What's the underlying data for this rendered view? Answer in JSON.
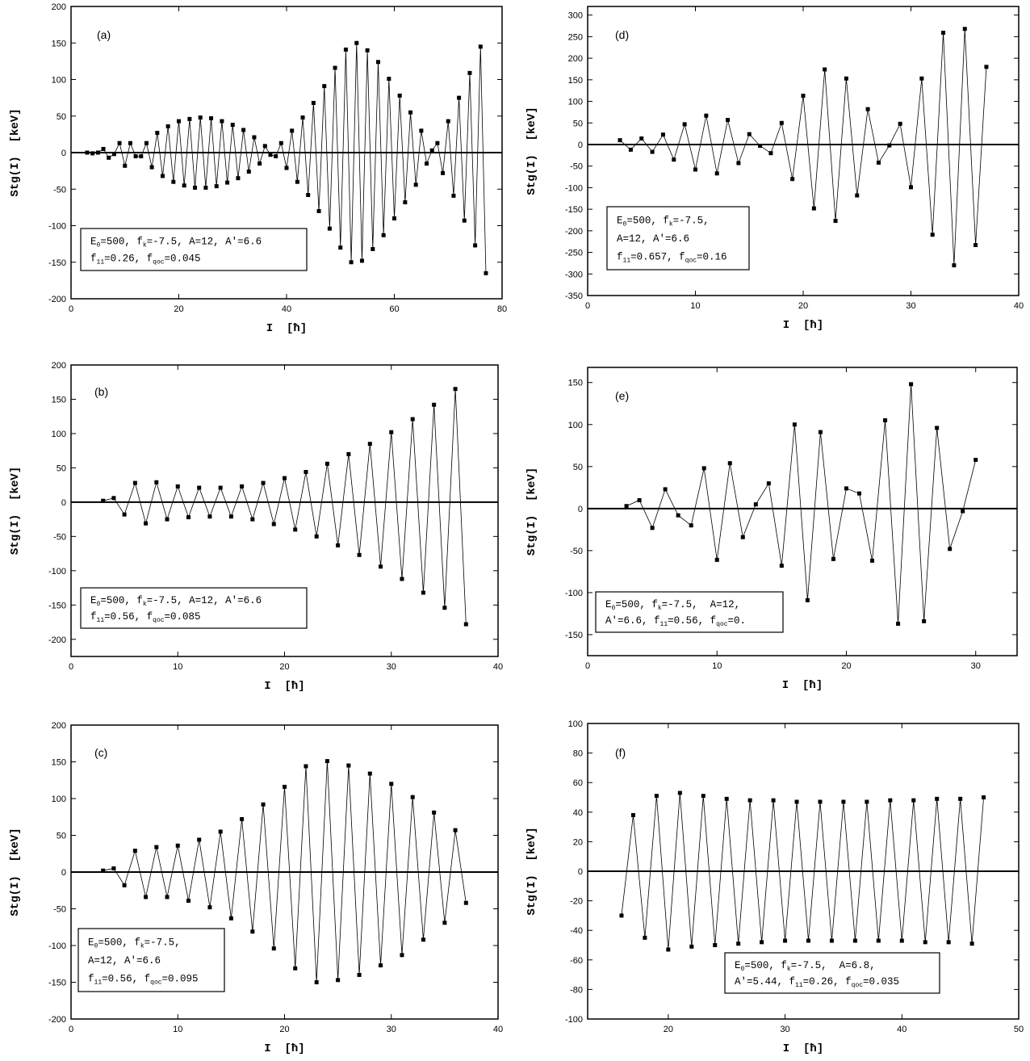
{
  "chart_data": [
    {
      "type": "line",
      "label": "(a)",
      "ylabel": "Stg(I)  [keV]",
      "xlabel": "I  [ħ]",
      "x": [
        3,
        4,
        5,
        6,
        7,
        8,
        9,
        10,
        11,
        12,
        13,
        14,
        15,
        16,
        17,
        18,
        19,
        20,
        21,
        22,
        23,
        24,
        25,
        26,
        27,
        28,
        29,
        30,
        31,
        32,
        33,
        34,
        35,
        36,
        37,
        38,
        39,
        40,
        41,
        42,
        43,
        44,
        45,
        46,
        47,
        48,
        49,
        50,
        51,
        52,
        53,
        54,
        55,
        56,
        57,
        58,
        59,
        60,
        61,
        62,
        63,
        64,
        65,
        66,
        67,
        68,
        69,
        70,
        71,
        72,
        73,
        74,
        75,
        76,
        77
      ],
      "series": [
        {
          "color": "#000000",
          "values": [
            0,
            -1,
            0,
            5,
            -7,
            -2,
            13,
            -18,
            13,
            -5,
            -5,
            13,
            -20,
            27,
            -32,
            36,
            -40,
            43,
            -45,
            46,
            -48,
            48,
            -48,
            47,
            -46,
            43,
            -41,
            38,
            -35,
            31,
            -26,
            21,
            -15,
            9,
            -3,
            -5,
            13,
            -21,
            30,
            -40,
            48,
            -58,
            68,
            -80,
            91,
            -104,
            116,
            -130,
            141,
            -150,
            150,
            -148,
            140,
            -132,
            124,
            -113,
            101,
            -90,
            78,
            -68,
            55,
            -44,
            30,
            -15,
            3,
            13,
            -28,
            43,
            -59,
            75,
            -93,
            109,
            -127,
            145,
            -165
          ]
        }
      ],
      "xlim": [
        0,
        80
      ],
      "xticks": [
        0,
        20,
        40,
        60,
        80
      ],
      "ylim": [
        -200,
        200
      ],
      "yticks": [
        -200,
        -150,
        -100,
        -50,
        0,
        50,
        100,
        150,
        200
      ],
      "annotation": [
        [
          "E",
          "0",
          "=500, f",
          "k",
          "=-7.5, A=12, A'=6.6"
        ],
        [
          "f",
          "11",
          "=0.26, f",
          "qoc",
          "=0.045"
        ]
      ]
    },
    {
      "type": "line",
      "label": "(b)",
      "ylabel": "Stg(I)  [keV]",
      "xlabel": "I  [ħ]",
      "x": [
        3,
        4,
        5,
        6,
        7,
        8,
        9,
        10,
        11,
        12,
        13,
        14,
        15,
        16,
        17,
        18,
        19,
        20,
        21,
        22,
        23,
        24,
        25,
        26,
        27,
        28,
        29,
        30,
        31,
        32,
        33,
        34,
        35,
        36,
        37
      ],
      "series": [
        {
          "color": "#000000",
          "values": [
            2,
            6,
            -18,
            28,
            -31,
            29,
            -25,
            23,
            -22,
            21,
            -21,
            21,
            -21,
            23,
            -25,
            28,
            -32,
            35,
            -40,
            44,
            -50,
            56,
            -63,
            70,
            -77,
            85,
            -94,
            102,
            -112,
            121,
            -132,
            142,
            -154,
            165,
            -178
          ]
        }
      ],
      "xlim": [
        0,
        40
      ],
      "xticks": [
        0,
        10,
        20,
        30,
        40
      ],
      "ylim": [
        -225,
        200
      ],
      "yticks": [
        -200,
        -150,
        -100,
        -50,
        0,
        50,
        100,
        150,
        200
      ],
      "annotation": [
        [
          "E",
          "0",
          "=500, f",
          "k",
          "=-7.5, A=12, A'=6.6"
        ],
        [
          "f",
          "11",
          "=0.56, f",
          "qoc",
          "=0.085"
        ]
      ]
    },
    {
      "type": "line",
      "label": "(c)",
      "ylabel": "Stg(I)  [keV]",
      "xlabel": "I  [ħ]",
      "x": [
        3,
        4,
        5,
        6,
        7,
        8,
        9,
        10,
        11,
        12,
        13,
        14,
        15,
        16,
        17,
        18,
        19,
        20,
        21,
        22,
        23,
        24,
        25,
        26,
        27,
        28,
        29,
        30,
        31,
        32,
        33,
        34,
        35,
        36,
        37
      ],
      "series": [
        {
          "color": "#000000",
          "values": [
            2,
            5,
            -18,
            29,
            -34,
            34,
            -34,
            36,
            -39,
            44,
            -48,
            55,
            -63,
            72,
            -81,
            92,
            -104,
            116,
            -131,
            144,
            -150,
            151,
            -147,
            145,
            -140,
            134,
            -127,
            120,
            -113,
            102,
            -92,
            81,
            -69,
            57,
            -42
          ]
        }
      ],
      "xlim": [
        0,
        40
      ],
      "xticks": [
        0,
        10,
        20,
        30,
        40
      ],
      "ylim": [
        -200,
        200
      ],
      "yticks": [
        -200,
        -150,
        -100,
        -50,
        0,
        50,
        100,
        150,
        200
      ],
      "annotation": [
        [
          "E",
          "0",
          "=500, f",
          "k",
          "=-7.5,"
        ],
        [
          "A=12, A'=6.6"
        ],
        [
          "f",
          "11",
          "=0.56, f",
          "qoc",
          "=0.095"
        ]
      ]
    },
    {
      "type": "line",
      "label": "(d)",
      "ylabel": "Stg(I)  [keV]",
      "xlabel": "I  [ħ]",
      "x": [
        3,
        4,
        5,
        6,
        7,
        8,
        9,
        10,
        11,
        12,
        13,
        14,
        15,
        16,
        17,
        18,
        19,
        20,
        21,
        22,
        23,
        24,
        25,
        26,
        27,
        28,
        29,
        30,
        31,
        32,
        33,
        34,
        35,
        36,
        37
      ],
      "series": [
        {
          "color": "#000000",
          "values": [
            10,
            -12,
            14,
            -17,
            23,
            -35,
            47,
            -58,
            67,
            -67,
            57,
            -43,
            24,
            -3,
            -20,
            50,
            -80,
            113,
            -148,
            174,
            -177,
            153,
            -118,
            82,
            -42,
            -2,
            48,
            -99,
            153,
            -209,
            259,
            -280,
            268,
            -233,
            180
          ]
        }
      ],
      "xlim": [
        0,
        40
      ],
      "xticks": [
        0,
        10,
        20,
        30,
        40
      ],
      "ylim": [
        -350,
        320
      ],
      "yticks": [
        -350,
        -300,
        -250,
        -200,
        -150,
        -100,
        -50,
        0,
        50,
        100,
        150,
        200,
        250,
        300
      ],
      "annotation": [
        [
          "E",
          "0",
          "=500, f",
          "k",
          "=-7.5,"
        ],
        [
          "A=12, A'=6.6"
        ],
        [
          "f",
          "11",
          "=0.657, f",
          "qoc",
          "=0.16"
        ]
      ]
    },
    {
      "type": "line",
      "label": "(e)",
      "ylabel": "Stg(I)  [keV]",
      "xlabel": "I  [ħ]",
      "x": [
        3,
        4,
        5,
        6,
        7,
        8,
        9,
        10,
        11,
        12,
        13,
        14,
        15,
        16,
        17,
        18,
        19,
        20,
        21,
        22,
        23,
        24,
        25,
        26,
        27,
        28,
        29,
        30
      ],
      "series": [
        {
          "color": "#000000",
          "values": [
            3,
            10,
            -23,
            23,
            -8,
            -20,
            48,
            -61,
            54,
            -34,
            5,
            30,
            -68,
            100,
            -109,
            91,
            -60,
            24,
            18,
            -62,
            105,
            -137,
            148,
            -134,
            96,
            -48,
            -3,
            58
          ]
        }
      ],
      "xlim": [
        0,
        33.2
      ],
      "xticks": [
        0,
        10,
        20,
        30
      ],
      "ylim": [
        -175,
        168
      ],
      "yticks": [
        -150,
        -100,
        -50,
        0,
        50,
        100,
        150
      ],
      "annotation": [
        [
          "E",
          "0",
          "=500, f",
          "k",
          "=-7.5,  A=12,"
        ],
        [
          "A'=6.6, f",
          "11",
          "=0.56, f",
          "qoc",
          "=0."
        ]
      ]
    },
    {
      "type": "line",
      "label": "(f)",
      "ylabel": "Stg(I)  [keV]",
      "xlabel": "I  [ħ]",
      "x": [
        16,
        17,
        18,
        19,
        20,
        21,
        22,
        23,
        24,
        25,
        26,
        27,
        28,
        29,
        30,
        31,
        32,
        33,
        34,
        35,
        36,
        37,
        38,
        39,
        40,
        41,
        42,
        43,
        44,
        45,
        46,
        47
      ],
      "series": [
        {
          "color": "#000000",
          "values": [
            -30,
            38,
            -45,
            51,
            -53,
            53,
            -51,
            51,
            -50,
            49,
            -49,
            48,
            -48,
            48,
            -47,
            47,
            -47,
            47,
            -47,
            47,
            -47,
            47,
            -47,
            48,
            -47,
            48,
            -48,
            49,
            -48,
            49,
            -49,
            50
          ]
        }
      ],
      "xlim": [
        13.1,
        50
      ],
      "xticks": [
        20,
        30,
        40,
        50
      ],
      "ylim": [
        -100,
        100
      ],
      "yticks": [
        -100,
        -80,
        -60,
        -40,
        -20,
        0,
        20,
        40,
        60,
        80,
        100
      ],
      "annotation": [
        [
          "E",
          "0",
          "=500, f",
          "k",
          "=-7.5,  A=6.8,"
        ],
        [
          "A'=5.44, f",
          "11",
          "=0.26, f",
          "qoc",
          "=0.035"
        ]
      ]
    }
  ]
}
